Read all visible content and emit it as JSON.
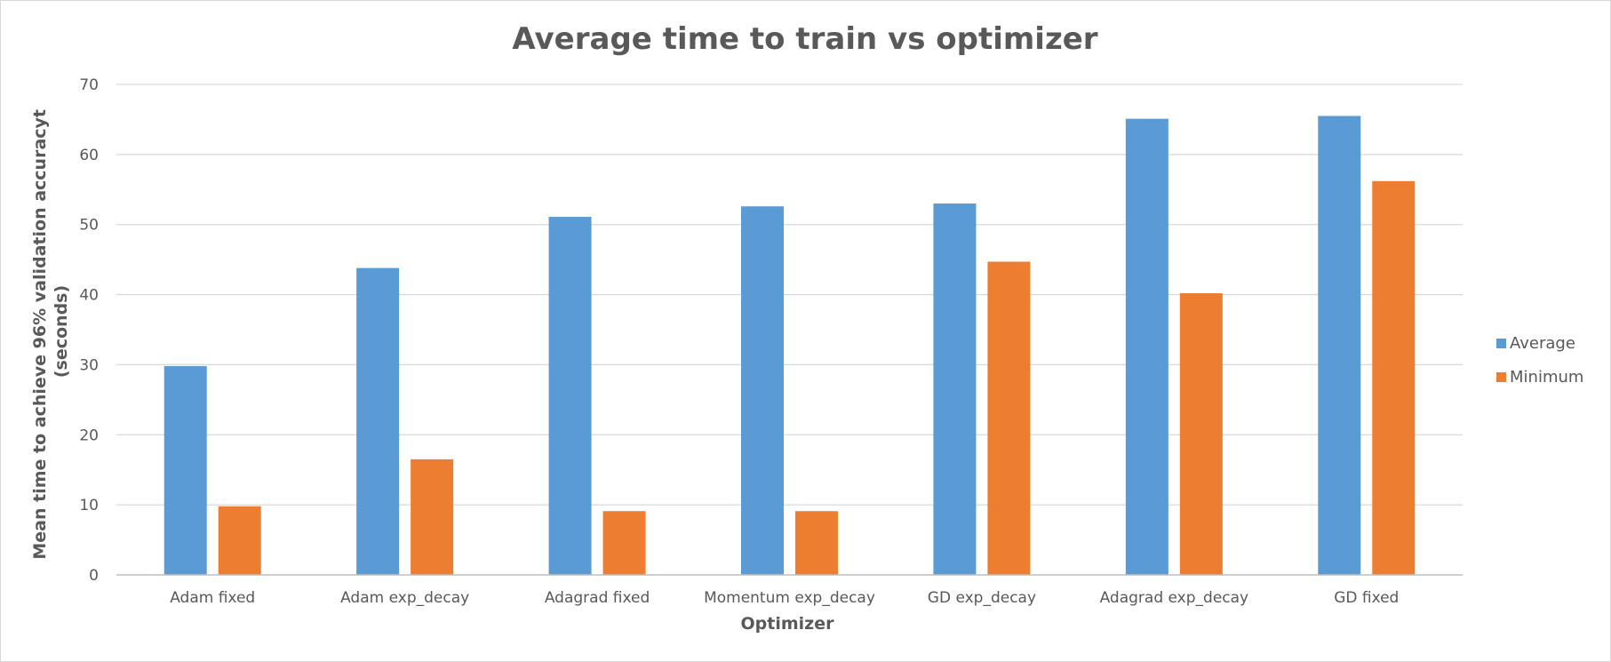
{
  "chart_data": {
    "type": "bar",
    "title": "Average time to train vs optimizer",
    "xlabel": "Optimizer",
    "ylabel_lines": [
      "Mean time to achieve 96% validation accuracyt",
      "(seconds)"
    ],
    "categories": [
      "Adam fixed",
      "Adam exp_decay",
      "Adagrad fixed",
      "Momentum exp_decay",
      "GD exp_decay",
      "Adagrad exp_decay",
      "GD fixed"
    ],
    "series": [
      {
        "name": "Average",
        "color": "#5b9bd5",
        "values": [
          29.8,
          43.8,
          51.1,
          52.6,
          53.0,
          65.1,
          65.5
        ]
      },
      {
        "name": "Minimum",
        "color": "#ed7d31",
        "values": [
          9.8,
          16.5,
          9.1,
          9.1,
          44.7,
          40.2,
          56.2
        ]
      }
    ],
    "ylim": [
      0,
      70
    ],
    "yticks": [
      0,
      10,
      20,
      30,
      40,
      50,
      60,
      70
    ],
    "grid": true,
    "legend_position": "right"
  }
}
